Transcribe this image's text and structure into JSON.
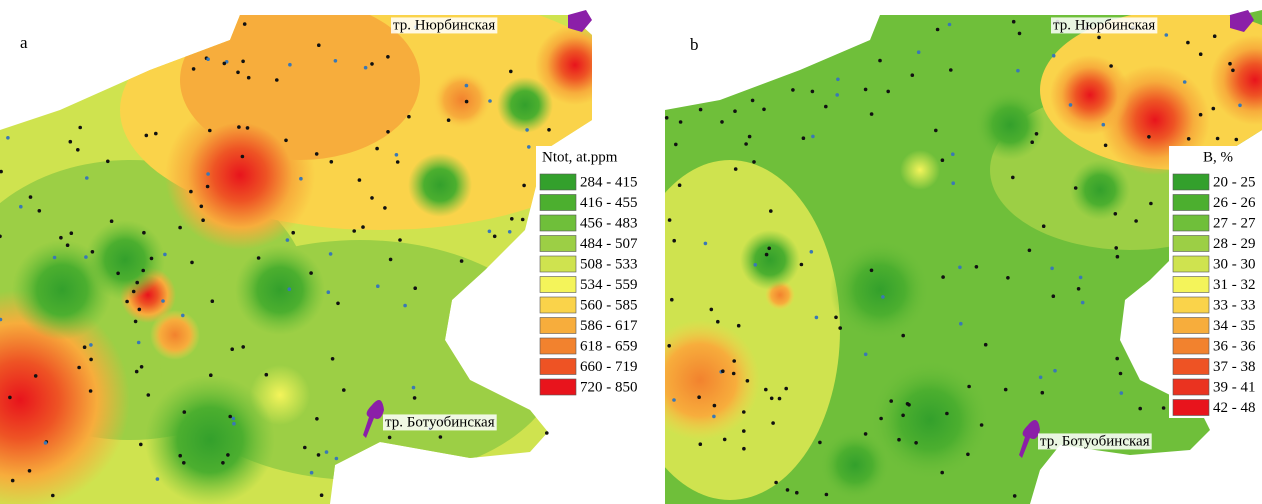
{
  "panels": [
    {
      "label": "a",
      "places": [
        "тр. Нюрбинская",
        "тр. Ботуобинская"
      ],
      "legend": {
        "title": "Ntot, at.ppm",
        "items": [
          {
            "label": "284 - 415",
            "color": "#33a02c"
          },
          {
            "label": "416 - 455",
            "color": "#4caf2f"
          },
          {
            "label": "456 - 483",
            "color": "#6fbf3a"
          },
          {
            "label": "484 - 507",
            "color": "#9ccf45"
          },
          {
            "label": "508 - 533",
            "color": "#cfe34f"
          },
          {
            "label": "534 - 559",
            "color": "#f4f45a"
          },
          {
            "label": "560 - 585",
            "color": "#fad34a"
          },
          {
            "label": "586 - 617",
            "color": "#f7ad3c"
          },
          {
            "label": "618 - 659",
            "color": "#f2822e"
          },
          {
            "label": "660 - 719",
            "color": "#ee5324"
          },
          {
            "label": "720 - 850",
            "color": "#e8141c"
          }
        ]
      }
    },
    {
      "label": "b",
      "places": [
        "тр. Нюрбинская",
        "тр. Ботуобинская"
      ],
      "legend": {
        "title": "B, %",
        "items": [
          {
            "label": "20 - 25",
            "color": "#33a02c"
          },
          {
            "label": "26 - 26",
            "color": "#4caf2f"
          },
          {
            "label": "27 - 27",
            "color": "#6fbf3a"
          },
          {
            "label": "28 - 29",
            "color": "#9ccf45"
          },
          {
            "label": "30 - 30",
            "color": "#cfe34f"
          },
          {
            "label": "31 - 32",
            "color": "#f4f45a"
          },
          {
            "label": "33 - 33",
            "color": "#fad34a"
          },
          {
            "label": "34 - 35",
            "color": "#f7ad3c"
          },
          {
            "label": "36 - 36",
            "color": "#f2822e"
          },
          {
            "label": "37 - 38",
            "color": "#ee5324"
          },
          {
            "label": "39 - 41",
            "color": "#ea3320"
          },
          {
            "label": "42 - 48",
            "color": "#e8141c"
          }
        ]
      }
    }
  ]
}
